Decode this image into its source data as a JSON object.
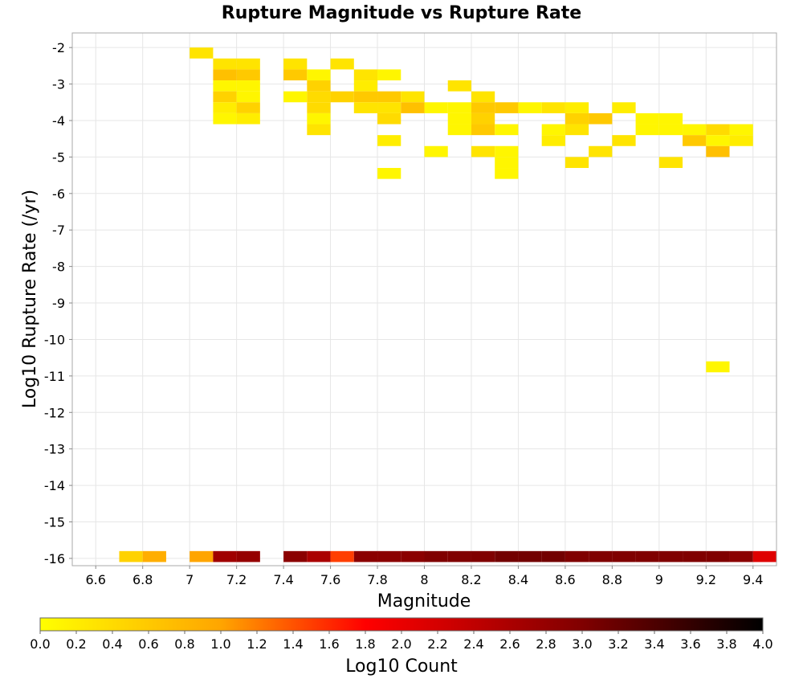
{
  "chart_data": {
    "type": "heatmap",
    "title": "Rupture Magnitude vs Rupture Rate",
    "xlabel": "Magnitude",
    "ylabel": "Log10 Rupture Rate (/yr)",
    "xlim": [
      6.5,
      9.5
    ],
    "ylim": [
      -16.2,
      -1.6
    ],
    "x_ticks": [
      "6.6",
      "6.8",
      "7",
      "7.2",
      "7.4",
      "7.6",
      "7.8",
      "8",
      "8.2",
      "8.4",
      "8.6",
      "8.8",
      "9",
      "9.2",
      "9.4"
    ],
    "y_ticks": [
      "-2",
      "-3",
      "-4",
      "-5",
      "-6",
      "-7",
      "-8",
      "-9",
      "-10",
      "-11",
      "-12",
      "-13",
      "-14",
      "-15",
      "-16"
    ],
    "grid": true,
    "bin_width": 0.1,
    "bin_height": 0.3,
    "colorbar": {
      "label": "Log10 Count",
      "min": 0.0,
      "max": 4.0,
      "ticks": [
        "0.0",
        "0.2",
        "0.4",
        "0.6",
        "0.8",
        "1.0",
        "1.2",
        "1.4",
        "1.6",
        "1.8",
        "2.0",
        "2.2",
        "2.4",
        "2.6",
        "2.8",
        "3.0",
        "3.2",
        "3.4",
        "3.6",
        "3.8",
        "4.0"
      ]
    },
    "cells": [
      {
        "x": 7.05,
        "y": -2.15,
        "v": 0.3
      },
      {
        "x": 7.15,
        "y": -2.45,
        "v": 0.3
      },
      {
        "x": 7.15,
        "y": -2.75,
        "v": 0.7
      },
      {
        "x": 7.15,
        "y": -3.05,
        "v": 0.1
      },
      {
        "x": 7.15,
        "y": -3.35,
        "v": 0.5
      },
      {
        "x": 7.15,
        "y": -3.65,
        "v": 0.2
      },
      {
        "x": 7.15,
        "y": -3.95,
        "v": 0.1
      },
      {
        "x": 7.25,
        "y": -2.45,
        "v": 0.3
      },
      {
        "x": 7.25,
        "y": -2.75,
        "v": 0.6
      },
      {
        "x": 7.25,
        "y": -3.05,
        "v": 0.1
      },
      {
        "x": 7.25,
        "y": -3.35,
        "v": 0.1
      },
      {
        "x": 7.25,
        "y": -3.65,
        "v": 0.5
      },
      {
        "x": 7.25,
        "y": -3.95,
        "v": 0.2
      },
      {
        "x": 7.45,
        "y": -2.45,
        "v": 0.3
      },
      {
        "x": 7.45,
        "y": -2.75,
        "v": 0.6
      },
      {
        "x": 7.45,
        "y": -3.35,
        "v": 0.1
      },
      {
        "x": 7.55,
        "y": -2.75,
        "v": 0.1
      },
      {
        "x": 7.55,
        "y": -3.05,
        "v": 0.5
      },
      {
        "x": 7.55,
        "y": -3.35,
        "v": 0.4
      },
      {
        "x": 7.55,
        "y": -3.65,
        "v": 0.4
      },
      {
        "x": 7.55,
        "y": -3.95,
        "v": 0.1
      },
      {
        "x": 7.55,
        "y": -4.25,
        "v": 0.3
      },
      {
        "x": 7.65,
        "y": -2.45,
        "v": 0.3
      },
      {
        "x": 7.65,
        "y": -3.35,
        "v": 0.5
      },
      {
        "x": 7.75,
        "y": -2.75,
        "v": 0.3
      },
      {
        "x": 7.75,
        "y": -3.05,
        "v": 0.2
      },
      {
        "x": 7.75,
        "y": -3.35,
        "v": 0.6
      },
      {
        "x": 7.75,
        "y": -3.65,
        "v": 0.3
      },
      {
        "x": 7.85,
        "y": -2.75,
        "v": 0.1
      },
      {
        "x": 7.85,
        "y": -3.35,
        "v": 0.6
      },
      {
        "x": 7.85,
        "y": -3.65,
        "v": 0.3
      },
      {
        "x": 7.85,
        "y": -3.95,
        "v": 0.4
      },
      {
        "x": 7.85,
        "y": -4.55,
        "v": 0.2
      },
      {
        "x": 7.85,
        "y": -5.45,
        "v": 0.1
      },
      {
        "x": 7.95,
        "y": -3.35,
        "v": 0.3
      },
      {
        "x": 7.95,
        "y": -3.65,
        "v": 0.7
      },
      {
        "x": 8.05,
        "y": -3.65,
        "v": 0.1
      },
      {
        "x": 8.05,
        "y": -4.85,
        "v": 0.1
      },
      {
        "x": 8.15,
        "y": -3.05,
        "v": 0.3
      },
      {
        "x": 8.15,
        "y": -3.65,
        "v": 0.1
      },
      {
        "x": 8.15,
        "y": -3.95,
        "v": 0.1
      },
      {
        "x": 8.15,
        "y": -4.25,
        "v": 0.1
      },
      {
        "x": 8.25,
        "y": -3.35,
        "v": 0.3
      },
      {
        "x": 8.25,
        "y": -3.65,
        "v": 0.6
      },
      {
        "x": 8.25,
        "y": -3.95,
        "v": 0.5
      },
      {
        "x": 8.25,
        "y": -4.25,
        "v": 0.6
      },
      {
        "x": 8.25,
        "y": -4.85,
        "v": 0.3
      },
      {
        "x": 8.35,
        "y": -3.65,
        "v": 0.6
      },
      {
        "x": 8.35,
        "y": -4.25,
        "v": 0.1
      },
      {
        "x": 8.35,
        "y": -4.85,
        "v": 0.1
      },
      {
        "x": 8.35,
        "y": -5.15,
        "v": 0.1
      },
      {
        "x": 8.35,
        "y": -5.45,
        "v": 0.1
      },
      {
        "x": 8.45,
        "y": -3.65,
        "v": 0.1
      },
      {
        "x": 8.55,
        "y": -3.65,
        "v": 0.3
      },
      {
        "x": 8.55,
        "y": -4.25,
        "v": 0.1
      },
      {
        "x": 8.55,
        "y": -4.55,
        "v": 0.2
      },
      {
        "x": 8.65,
        "y": -3.65,
        "v": 0.2
      },
      {
        "x": 8.65,
        "y": -3.95,
        "v": 0.5
      },
      {
        "x": 8.65,
        "y": -4.25,
        "v": 0.3
      },
      {
        "x": 8.65,
        "y": -5.15,
        "v": 0.3
      },
      {
        "x": 8.75,
        "y": -3.95,
        "v": 0.6
      },
      {
        "x": 8.75,
        "y": -4.85,
        "v": 0.3
      },
      {
        "x": 8.85,
        "y": -3.65,
        "v": 0.2
      },
      {
        "x": 8.85,
        "y": -4.55,
        "v": 0.3
      },
      {
        "x": 8.95,
        "y": -3.95,
        "v": 0.1
      },
      {
        "x": 8.95,
        "y": -4.25,
        "v": 0.1
      },
      {
        "x": 9.05,
        "y": -3.95,
        "v": 0.1
      },
      {
        "x": 9.05,
        "y": -4.25,
        "v": 0.1
      },
      {
        "x": 9.05,
        "y": -5.15,
        "v": 0.3
      },
      {
        "x": 9.15,
        "y": -4.25,
        "v": 0.1
      },
      {
        "x": 9.15,
        "y": -4.55,
        "v": 0.6
      },
      {
        "x": 9.25,
        "y": -4.25,
        "v": 0.4
      },
      {
        "x": 9.25,
        "y": -4.55,
        "v": 0.1
      },
      {
        "x": 9.25,
        "y": -4.85,
        "v": 0.7
      },
      {
        "x": 9.25,
        "y": -10.75,
        "v": 0.1
      },
      {
        "x": 9.35,
        "y": -4.25,
        "v": 0.1
      },
      {
        "x": 9.35,
        "y": -4.55,
        "v": 0.2
      },
      {
        "x": 6.75,
        "y": -15.95,
        "v": 0.5
      },
      {
        "x": 6.85,
        "y": -15.95,
        "v": 0.9
      },
      {
        "x": 7.05,
        "y": -15.95,
        "v": 1.0
      },
      {
        "x": 7.15,
        "y": -15.95,
        "v": 2.7
      },
      {
        "x": 7.25,
        "y": -15.95,
        "v": 2.8
      },
      {
        "x": 7.45,
        "y": -15.95,
        "v": 2.9
      },
      {
        "x": 7.55,
        "y": -15.95,
        "v": 2.6
      },
      {
        "x": 7.65,
        "y": -15.95,
        "v": 1.5
      },
      {
        "x": 7.75,
        "y": -15.95,
        "v": 2.9
      },
      {
        "x": 7.85,
        "y": -15.95,
        "v": 2.9
      },
      {
        "x": 7.95,
        "y": -15.95,
        "v": 2.9
      },
      {
        "x": 8.05,
        "y": -15.95,
        "v": 3.0
      },
      {
        "x": 8.15,
        "y": -15.95,
        "v": 3.0
      },
      {
        "x": 8.25,
        "y": -15.95,
        "v": 3.0
      },
      {
        "x": 8.35,
        "y": -15.95,
        "v": 3.1
      },
      {
        "x": 8.45,
        "y": -15.95,
        "v": 3.1
      },
      {
        "x": 8.55,
        "y": -15.95,
        "v": 3.1
      },
      {
        "x": 8.65,
        "y": -15.95,
        "v": 3.0
      },
      {
        "x": 8.75,
        "y": -15.95,
        "v": 3.0
      },
      {
        "x": 8.85,
        "y": -15.95,
        "v": 3.0
      },
      {
        "x": 8.95,
        "y": -15.95,
        "v": 3.0
      },
      {
        "x": 9.05,
        "y": -15.95,
        "v": 3.0
      },
      {
        "x": 9.15,
        "y": -15.95,
        "v": 3.0
      },
      {
        "x": 9.25,
        "y": -15.95,
        "v": 3.0
      },
      {
        "x": 9.35,
        "y": -15.95,
        "v": 2.9
      },
      {
        "x": 9.45,
        "y": -15.95,
        "v": 2.1
      }
    ]
  }
}
